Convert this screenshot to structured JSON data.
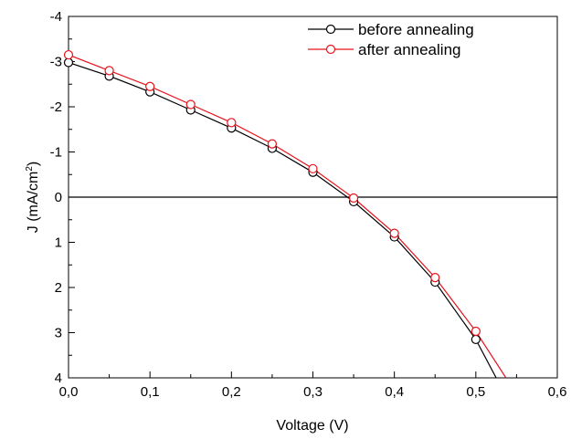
{
  "chart_data": {
    "type": "line",
    "xlabel": "Voltage (V)",
    "ylabel_main": "J (mA/cm",
    "ylabel_sup": "2",
    "ylabel_close": ")",
    "xlim": [
      0.0,
      0.6
    ],
    "ylim": [
      -4,
      4
    ],
    "y_axis_inverted": true,
    "x_ticks": [
      0.0,
      0.1,
      0.2,
      0.3,
      0.4,
      0.5,
      0.6
    ],
    "x_tick_labels": [
      "0,0",
      "0,1",
      "0,2",
      "0,3",
      "0,4",
      "0,5",
      "0,6"
    ],
    "y_ticks": [
      -4,
      -3,
      -2,
      -1,
      0,
      1,
      2,
      3,
      4
    ],
    "y_tick_labels": [
      "-4",
      "-3",
      "-2",
      "-1",
      "0",
      "1",
      "2",
      "3",
      "4"
    ],
    "zero_line": 0,
    "legend_position": "top-right",
    "grid": false,
    "series": [
      {
        "name": "before annealing",
        "color": "#000000",
        "marker": "open-circle",
        "x": [
          0.0,
          0.05,
          0.1,
          0.15,
          0.2,
          0.25,
          0.3,
          0.35,
          0.4,
          0.45,
          0.5
        ],
        "y": [
          -2.98,
          -2.68,
          -2.33,
          -1.93,
          -1.53,
          -1.08,
          -0.55,
          0.1,
          0.88,
          1.88,
          3.15
        ],
        "line_x": [
          0.5,
          0.525
        ],
        "line_y": [
          3.15,
          4.0
        ]
      },
      {
        "name": "after annealing",
        "color": "#e8121b",
        "marker": "open-circle",
        "x": [
          0.0,
          0.05,
          0.1,
          0.15,
          0.2,
          0.25,
          0.3,
          0.35,
          0.4,
          0.45,
          0.5
        ],
        "y": [
          -3.15,
          -2.8,
          -2.45,
          -2.05,
          -1.65,
          -1.18,
          -0.63,
          0.02,
          0.8,
          1.78,
          2.97
        ],
        "line_x": [
          0.5,
          0.537
        ],
        "line_y": [
          2.97,
          4.0
        ]
      }
    ]
  }
}
